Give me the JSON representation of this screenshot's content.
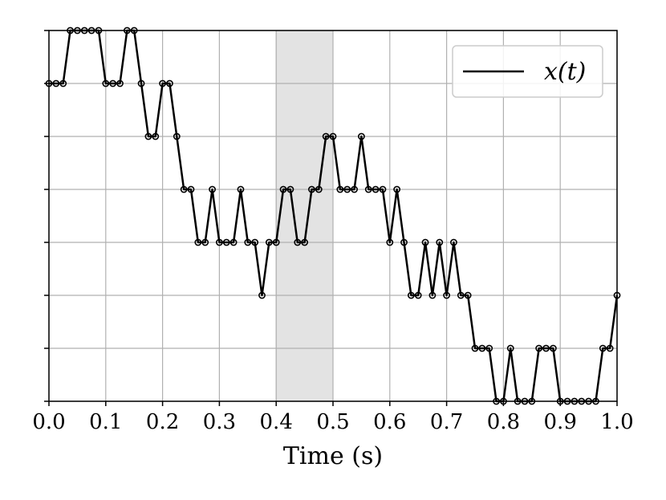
{
  "chart_data": {
    "type": "line",
    "title": "",
    "xlabel": "Time (s)",
    "ylabel": "",
    "xlim": [
      0.0,
      1.0
    ],
    "ylim": [
      0,
      7
    ],
    "x_ticks": [
      "0.0",
      "0.1",
      "0.2",
      "0.3",
      "0.4",
      "0.5",
      "0.6",
      "0.7",
      "0.8",
      "0.9",
      "1.0"
    ],
    "y_tick_values": [
      0,
      1,
      2,
      3,
      4,
      5,
      6,
      7
    ],
    "y_tick_labels_shown": false,
    "grid": true,
    "legend": {
      "position": "top-right",
      "entries": [
        "x(t)"
      ]
    },
    "highlight_span": {
      "x_start": 0.4,
      "x_end": 0.5,
      "color": "#e3e3e3"
    },
    "series": [
      {
        "name": "x(t)",
        "color": "#000000",
        "marker": "open-circle",
        "x": [
          0.0,
          0.0125,
          0.025,
          0.0375,
          0.05,
          0.0625,
          0.075,
          0.0875,
          0.1,
          0.1125,
          0.125,
          0.1375,
          0.15,
          0.1625,
          0.175,
          0.1875,
          0.2,
          0.2125,
          0.225,
          0.2375,
          0.25,
          0.2625,
          0.275,
          0.2875,
          0.3,
          0.3125,
          0.325,
          0.3375,
          0.35,
          0.3625,
          0.375,
          0.3875,
          0.4,
          0.4125,
          0.425,
          0.4375,
          0.45,
          0.4625,
          0.475,
          0.4875,
          0.5,
          0.5125,
          0.525,
          0.5375,
          0.55,
          0.5625,
          0.575,
          0.5875,
          0.6,
          0.6125,
          0.625,
          0.6375,
          0.65,
          0.6625,
          0.675,
          0.6875,
          0.7,
          0.7125,
          0.725,
          0.7375,
          0.75,
          0.7625,
          0.775,
          0.7875,
          0.8,
          0.8125,
          0.825,
          0.8375,
          0.85,
          0.8625,
          0.875,
          0.8875,
          0.9,
          0.9125,
          0.925,
          0.9375,
          0.95,
          0.9625,
          0.975,
          0.9875,
          1.0
        ],
        "y": [
          6,
          6,
          6,
          7,
          7,
          7,
          7,
          7,
          6,
          6,
          6,
          7,
          7,
          6,
          5,
          5,
          6,
          6,
          5,
          4,
          4,
          3,
          3,
          4,
          3,
          3,
          3,
          4,
          3,
          3,
          2,
          3,
          3,
          4,
          4,
          3,
          3,
          4,
          4,
          5,
          5,
          4,
          4,
          4,
          5,
          4,
          4,
          4,
          3,
          4,
          3,
          2,
          2,
          3,
          2,
          3,
          2,
          3,
          2,
          2,
          1,
          1,
          1,
          0,
          0,
          1,
          0,
          0,
          0,
          1,
          1,
          1,
          0,
          0,
          0,
          0,
          0,
          0,
          1,
          1,
          2
        ]
      }
    ]
  }
}
